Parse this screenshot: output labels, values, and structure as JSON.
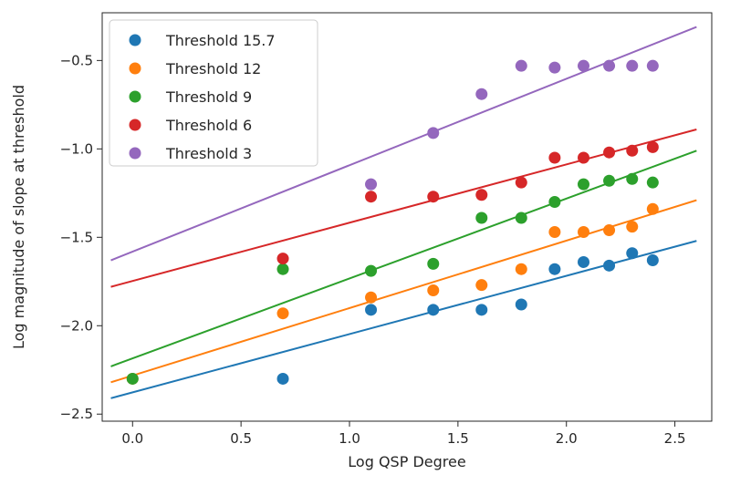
{
  "chart_data": {
    "type": "scatter",
    "title": "",
    "xlabel": "Log QSP Degree",
    "ylabel": "Log magnitude of slope at threshold",
    "xlim": [
      -0.14,
      2.67
    ],
    "ylim": [
      -2.54,
      -0.23
    ],
    "xticks": [
      0.0,
      0.5,
      1.0,
      1.5,
      2.0,
      2.5
    ],
    "xtick_labels": [
      "0.0",
      "0.5",
      "1.0",
      "1.5",
      "2.0",
      "2.5"
    ],
    "yticks": [
      -2.5,
      -2.0,
      -1.5,
      -1.0,
      -0.5
    ],
    "ytick_labels": [
      "−2.5",
      "−2.0",
      "−1.5",
      "−1.0",
      "−0.5"
    ],
    "grid": false,
    "legend_position": "top-left",
    "series": [
      {
        "name": "Threshold 15.7",
        "color": "#1f77b4",
        "points": [
          [
            0.693,
            -2.3
          ],
          [
            1.099,
            -1.91
          ],
          [
            1.386,
            -1.91
          ],
          [
            1.609,
            -1.91
          ],
          [
            1.792,
            -1.88
          ],
          [
            1.946,
            -1.68
          ],
          [
            2.079,
            -1.64
          ],
          [
            2.197,
            -1.66
          ],
          [
            2.303,
            -1.59
          ],
          [
            2.398,
            -1.63
          ]
        ],
        "fit_line": [
          [
            -0.1,
            -2.41
          ],
          [
            2.6,
            -1.52
          ]
        ]
      },
      {
        "name": "Threshold 12",
        "color": "#ff7f0e",
        "points": [
          [
            0.0,
            -2.3
          ],
          [
            0.693,
            -1.93
          ],
          [
            1.099,
            -1.84
          ],
          [
            1.386,
            -1.8
          ],
          [
            1.609,
            -1.77
          ],
          [
            1.792,
            -1.68
          ],
          [
            1.946,
            -1.47
          ],
          [
            2.079,
            -1.47
          ],
          [
            2.197,
            -1.46
          ],
          [
            2.303,
            -1.44
          ],
          [
            2.398,
            -1.34
          ]
        ],
        "fit_line": [
          [
            -0.1,
            -2.32
          ],
          [
            2.6,
            -1.29
          ]
        ]
      },
      {
        "name": "Threshold 9",
        "color": "#2ca02c",
        "points": [
          [
            0.0,
            -2.3
          ],
          [
            0.693,
            -1.68
          ],
          [
            1.099,
            -1.69
          ],
          [
            1.386,
            -1.65
          ],
          [
            1.609,
            -1.39
          ],
          [
            1.792,
            -1.39
          ],
          [
            1.946,
            -1.3
          ],
          [
            2.079,
            -1.2
          ],
          [
            2.197,
            -1.18
          ],
          [
            2.303,
            -1.17
          ],
          [
            2.398,
            -1.19
          ]
        ],
        "fit_line": [
          [
            -0.1,
            -2.23
          ],
          [
            2.6,
            -1.01
          ]
        ]
      },
      {
        "name": "Threshold 6",
        "color": "#d62728",
        "points": [
          [
            0.693,
            -1.62
          ],
          [
            1.099,
            -1.27
          ],
          [
            1.386,
            -1.27
          ],
          [
            1.609,
            -1.26
          ],
          [
            1.792,
            -1.19
          ],
          [
            1.946,
            -1.05
          ],
          [
            2.079,
            -1.05
          ],
          [
            2.197,
            -1.02
          ],
          [
            2.303,
            -1.01
          ],
          [
            2.398,
            -0.99
          ]
        ],
        "fit_line": [
          [
            -0.1,
            -1.78
          ],
          [
            2.6,
            -0.89
          ]
        ]
      },
      {
        "name": "Threshold 3",
        "color": "#9467bd",
        "points": [
          [
            1.099,
            -1.2
          ],
          [
            1.386,
            -0.91
          ],
          [
            1.609,
            -0.69
          ],
          [
            1.792,
            -0.53
          ],
          [
            1.946,
            -0.54
          ],
          [
            2.079,
            -0.53
          ],
          [
            2.197,
            -0.53
          ],
          [
            2.303,
            -0.53
          ],
          [
            2.398,
            -0.53
          ]
        ],
        "fit_line": [
          [
            -0.1,
            -1.63
          ],
          [
            2.6,
            -0.31
          ]
        ]
      }
    ]
  }
}
